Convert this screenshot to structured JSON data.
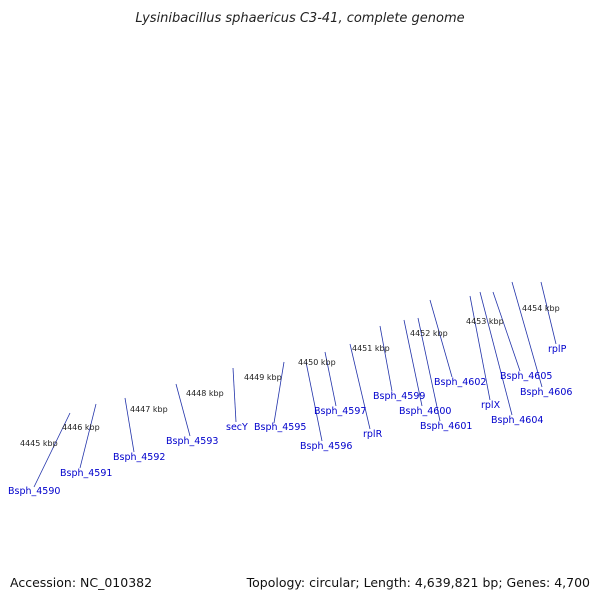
{
  "title": "Lysinibacillus sphaericus C3-41, complete genome",
  "footer": {
    "accession": "Accession: NC_010382",
    "topology": "Topology: circular; Length: 4,639,821 bp; Genes: 4,700"
  },
  "colors": {
    "backbone": "#8c8c8c",
    "forward_cds": "#1010e0",
    "reverse_cds": "#e88080",
    "ticks": "#1a8a1a",
    "label": "#0000cc",
    "highlight_orange": "#ff8c00",
    "highlight_cyan": "#22b8e8",
    "highlight_green": "#99ee33"
  },
  "kbp_labels": [
    "4445 kbp",
    "4446 kbp",
    "4447 kbp",
    "4448 kbp",
    "4449 kbp",
    "4450 kbp",
    "4451 kbp",
    "4452 kbp",
    "4453 kbp",
    "4454 kbp"
  ],
  "gene_labels": [
    "Bsph_4590",
    "Bsph_4591",
    "Bsph_4592",
    "Bsph_4593",
    "secY",
    "Bsph_4595",
    "Bsph_4596",
    "Bsph_4597",
    "rplR",
    "Bsph_4599",
    "Bsph_4600",
    "Bsph_4601",
    "Bsph_4602",
    "rplX",
    "Bsph_4604",
    "Bsph_4605",
    "Bsph_4606",
    "rplP"
  ]
}
